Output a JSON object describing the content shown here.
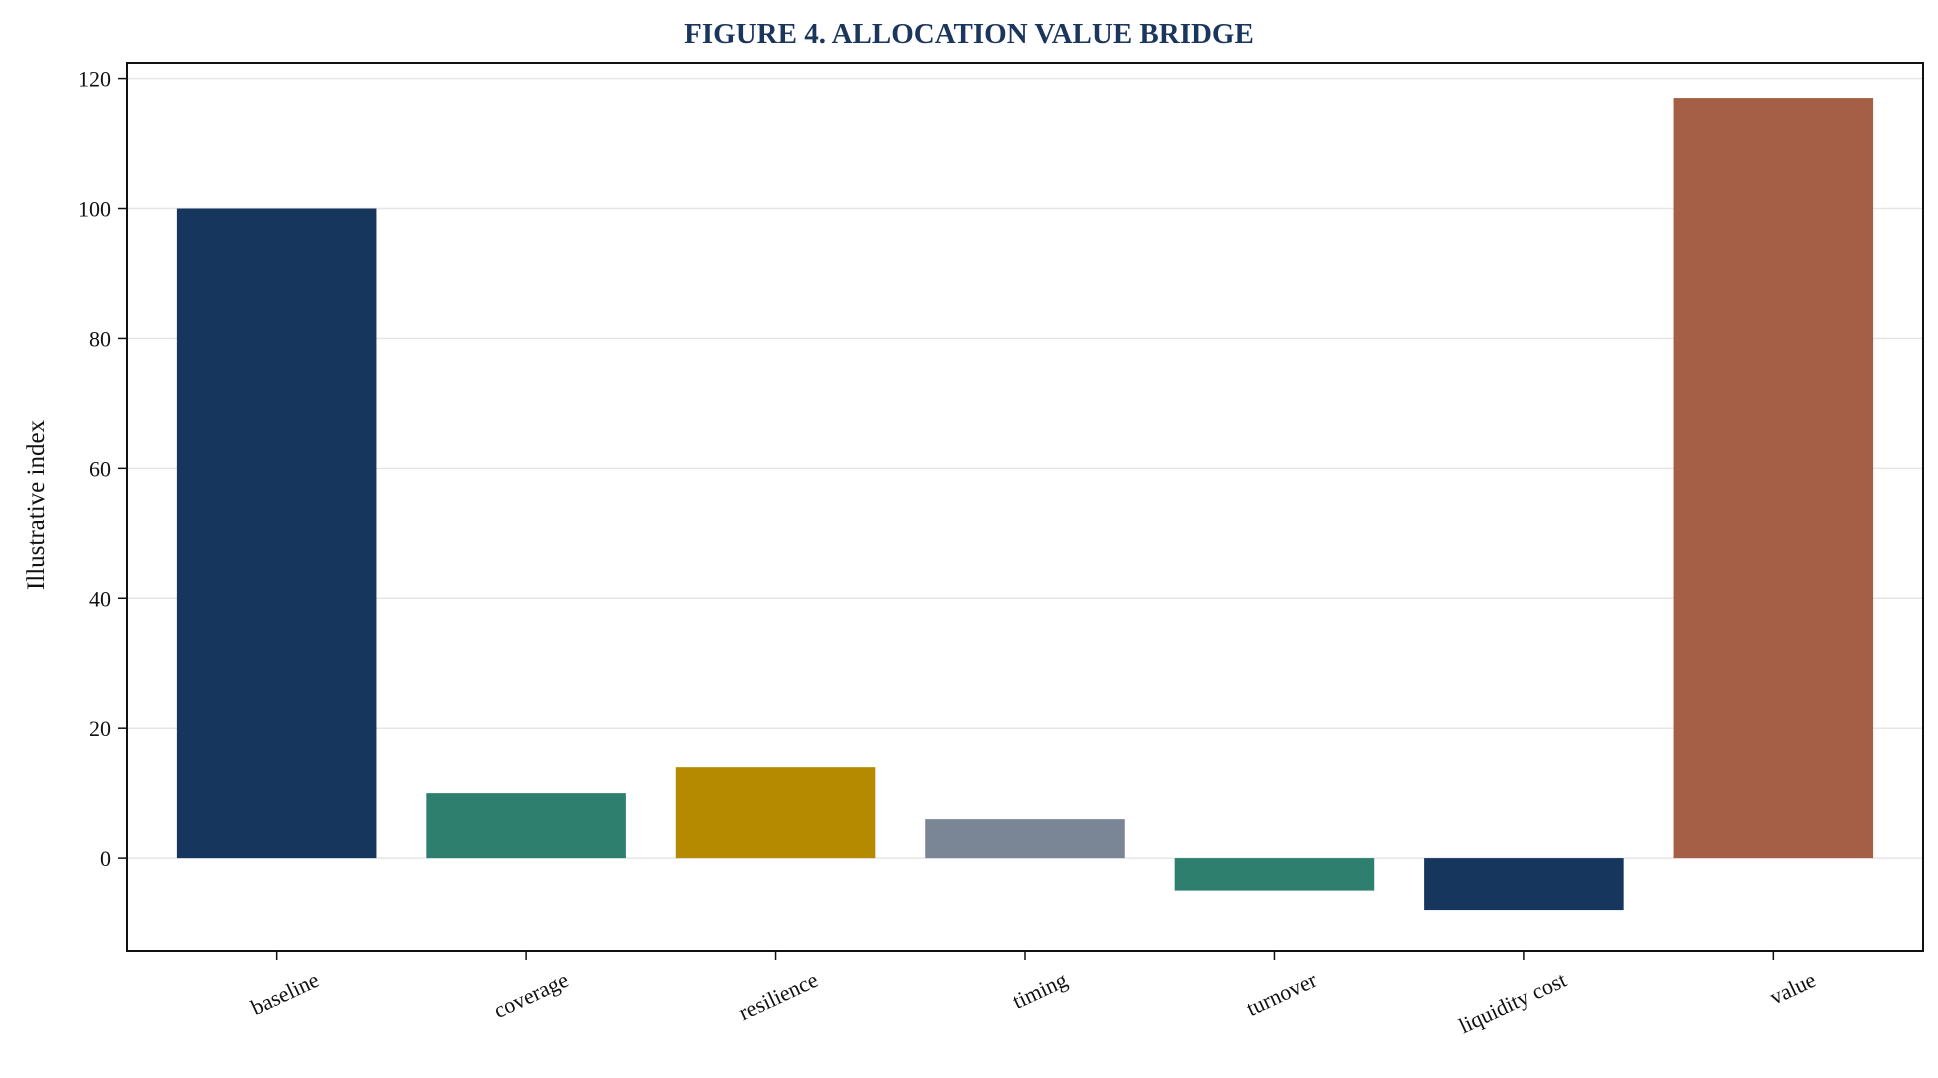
{
  "chart_data": {
    "type": "bar",
    "title": "FIGURE 4. ALLOCATION VALUE BRIDGE",
    "xlabel": "",
    "ylabel": "Illustrative index",
    "categories": [
      "baseline",
      "coverage",
      "resilience",
      "timing",
      "turnover",
      "liquidity cost",
      "value"
    ],
    "values": [
      100,
      10,
      14,
      6,
      -5,
      -8,
      117
    ],
    "bar_colors": [
      "#17365d",
      "#2e7f6e",
      "#b58a00",
      "#7a8595",
      "#2e7f6e",
      "#17365d",
      "#a65f47"
    ],
    "ylim": [
      -14.3,
      122.4
    ],
    "yticks": [
      0,
      20,
      40,
      60,
      80,
      100,
      120
    ],
    "grid": "y",
    "legend": "none",
    "title_color": "#1b365d"
  }
}
